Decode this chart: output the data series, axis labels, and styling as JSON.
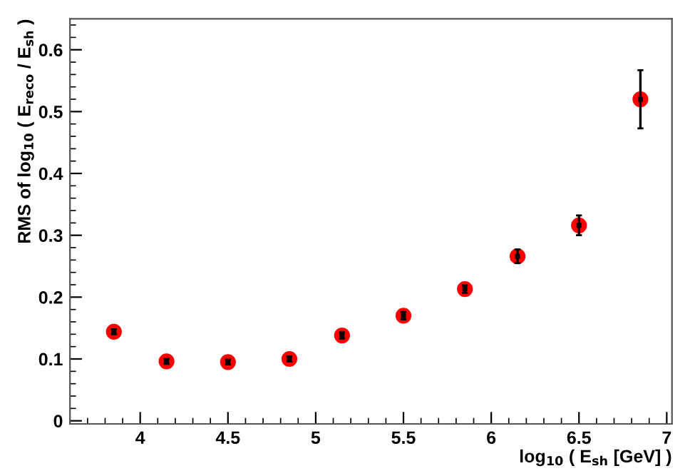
{
  "chart_data": {
    "type": "scatter",
    "xlabel": "log$_{10}$ ( E$_{sh}$ [GeV] )",
    "ylabel": "RMS of log$_{10}$ ( E$_{reco}$ / E$_{sh}$ )",
    "x": [
      3.85,
      4.15,
      4.5,
      4.85,
      5.15,
      5.5,
      5.85,
      6.15,
      6.5,
      6.85
    ],
    "series": [
      {
        "color": "#ff0000",
        "values": [
          0.144,
          0.096,
          0.095,
          0.1,
          0.138,
          0.17,
          0.213,
          0.266,
          0.316,
          0.52
        ],
        "errors": [
          0.004,
          0.004,
          0.004,
          0.004,
          0.005,
          0.006,
          0.006,
          0.011,
          0.016,
          0.047
        ]
      }
    ],
    "marker": "circle",
    "xlim": [
      3.6,
      7.03
    ],
    "ylim": [
      -0.005,
      0.65
    ],
    "xticks": [
      4,
      4.5,
      5,
      5.5,
      6,
      6.5,
      7
    ],
    "yticks": [
      0,
      0.1,
      0.2,
      0.3,
      0.4,
      0.5,
      0.6
    ],
    "grid": false,
    "legend": false
  }
}
